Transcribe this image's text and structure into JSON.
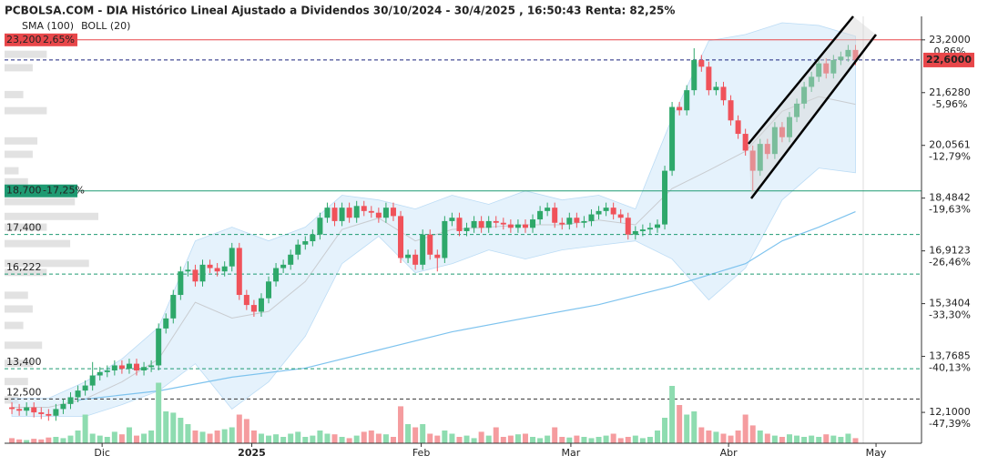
{
  "chart_data": {
    "type": "candlestick",
    "title": "PCBOLSA.COM - DIA Histórico Lineal Ajustado a Dividendos 30/10/2024 - 30/4/2025 , 16:50:43 Renta: 82,25%",
    "legend": [
      {
        "name": "SMA (100)",
        "color": "#7ec3ee"
      },
      {
        "name": "BOLL (20)",
        "color": "#b9c3cc"
      }
    ],
    "xlim": [
      -1,
      124
    ],
    "xticks": [
      {
        "value": 12.3,
        "label": "Dic"
      },
      {
        "value": 32.7,
        "label": "2025"
      },
      {
        "value": 55.8,
        "label": "Feb"
      },
      {
        "value": 76.2,
        "label": "Mar"
      },
      {
        "value": 97.7,
        "label": "Abr"
      },
      {
        "value": 117.8,
        "label": "May"
      }
    ],
    "ylim": [
      11.18,
      23.9
    ],
    "yticks": [
      {
        "value": 23.2,
        "label": "23,2000"
      },
      {
        "value": 21.628,
        "label": "21,6280"
      },
      {
        "value": 20.0561,
        "label": "20,0561"
      },
      {
        "value": 18.4842,
        "label": "18,4842"
      },
      {
        "value": 16.9123,
        "label": "16,9123"
      },
      {
        "value": 15.3404,
        "label": "15,3404"
      },
      {
        "value": 13.7685,
        "label": "13,7685"
      },
      {
        "value": 12.1,
        "label": "12,1000"
      }
    ],
    "ytick_changes": [
      "0,86%",
      "-5,96%",
      "-12,79%",
      "-19,63%",
      "-26,46%",
      "-33,30%",
      "-40,13%",
      "-47,39%"
    ],
    "up_color": "#2ea86a",
    "down_color": "#f0525a",
    "up_volume_color": "#8edcb0",
    "down_volume_color": "#f59c9f",
    "last": {
      "value": 22.6,
      "label": "22,6000",
      "color": "#e8474a"
    },
    "levels": [
      {
        "value": 23.2,
        "label": "23,200",
        "change": "2,65%",
        "color": "#e8474a",
        "style": "solid",
        "tag": true
      },
      {
        "value": 18.7,
        "label": "18,700",
        "change": "-17,25%",
        "color": "#1e9a72",
        "style": "solid",
        "tag": true
      },
      {
        "value": 17.4,
        "label": "17,400",
        "color": "#1e9a72",
        "style": "dashed",
        "tag": false
      },
      {
        "value": 16.222,
        "label": "16,222",
        "color": "#1e9a72",
        "style": "dashed",
        "tag": false
      },
      {
        "value": 13.4,
        "label": "13,400",
        "color": "#1e9a72",
        "style": "dashed",
        "tag": false
      },
      {
        "value": 12.5,
        "label": "12,500",
        "color": "#333333",
        "style": "dashed",
        "tag": false
      }
    ],
    "open": [
      12.25,
      12.2,
      12.15,
      12.25,
      12.1,
      12.05,
      12.0,
      12.2,
      12.35,
      12.55,
      12.75,
      12.9,
      13.2,
      13.3,
      13.35,
      13.5,
      13.4,
      13.55,
      13.35,
      13.45,
      13.5,
      14.6,
      14.9,
      15.6,
      16.3,
      16.35,
      16.0,
      16.5,
      16.4,
      16.3,
      16.45,
      17.0,
      15.6,
      15.3,
      15.1,
      15.5,
      16.0,
      16.4,
      16.5,
      16.8,
      17.1,
      17.2,
      17.4,
      17.9,
      18.2,
      17.8,
      18.2,
      17.9,
      18.25,
      18.1,
      18.05,
      17.9,
      18.2,
      17.95,
      16.7,
      16.8,
      16.5,
      17.4,
      16.8,
      16.7,
      17.8,
      17.9,
      17.5,
      17.6,
      17.8,
      17.6,
      17.8,
      17.75,
      17.7,
      17.6,
      17.7,
      17.6,
      17.85,
      18.1,
      18.2,
      17.75,
      17.7,
      17.9,
      17.75,
      17.8,
      18.0,
      18.1,
      18.2,
      18.0,
      17.9,
      17.4,
      17.5,
      17.55,
      17.6,
      17.7,
      19.3,
      21.2,
      21.1,
      21.7,
      22.6,
      22.4,
      21.7,
      21.8,
      21.4,
      20.8,
      20.4,
      19.9,
      19.3,
      20.1,
      19.8,
      20.6,
      20.3,
      20.9,
      21.3,
      21.8,
      22.1,
      22.5,
      22.2,
      22.6,
      22.7,
      22.9
    ],
    "high": [
      12.4,
      12.35,
      12.4,
      12.4,
      12.25,
      12.2,
      12.35,
      12.5,
      12.7,
      12.9,
      13.05,
      13.6,
      13.45,
      13.5,
      13.65,
      13.65,
      13.7,
      13.7,
      13.6,
      13.65,
      14.75,
      15.05,
      15.75,
      16.45,
      16.6,
      16.5,
      16.65,
      16.65,
      16.55,
      16.6,
      17.15,
      17.15,
      15.75,
      15.45,
      15.65,
      16.15,
      16.55,
      16.65,
      16.95,
      17.25,
      17.35,
      17.55,
      18.05,
      18.35,
      18.35,
      18.35,
      18.35,
      18.4,
      18.4,
      18.25,
      18.2,
      18.35,
      18.35,
      18.1,
      16.95,
      16.95,
      17.55,
      17.55,
      16.95,
      17.95,
      18.05,
      18.05,
      17.75,
      17.95,
      17.95,
      17.95,
      17.95,
      17.9,
      17.85,
      17.85,
      17.85,
      18.0,
      18.25,
      18.35,
      18.35,
      17.9,
      18.05,
      18.05,
      17.95,
      18.15,
      18.25,
      18.35,
      18.35,
      18.15,
      18.05,
      17.65,
      17.7,
      17.75,
      17.85,
      19.45,
      21.35,
      21.35,
      21.85,
      22.95,
      22.75,
      22.55,
      21.95,
      21.95,
      21.55,
      20.95,
      20.55,
      20.05,
      20.25,
      20.25,
      20.75,
      20.75,
      21.05,
      21.45,
      21.95,
      22.25,
      22.65,
      22.65,
      22.75,
      22.85,
      23.05,
      23.05
    ],
    "low": [
      12.05,
      12.0,
      12.0,
      11.95,
      11.9,
      11.85,
      11.85,
      12.05,
      12.2,
      12.4,
      12.6,
      12.75,
      13.05,
      13.15,
      13.2,
      13.25,
      13.25,
      13.2,
      13.2,
      13.3,
      13.35,
      14.45,
      14.75,
      15.45,
      16.15,
      15.85,
      15.85,
      16.25,
      16.15,
      16.15,
      16.3,
      15.45,
      15.15,
      14.95,
      14.95,
      15.35,
      15.85,
      16.25,
      16.35,
      16.65,
      16.95,
      17.05,
      17.25,
      17.75,
      17.65,
      17.65,
      17.75,
      17.75,
      17.95,
      17.9,
      17.75,
      17.75,
      17.8,
      16.55,
      16.55,
      16.35,
      16.35,
      16.65,
      16.3,
      16.55,
      17.65,
      17.35,
      17.35,
      17.45,
      17.45,
      17.45,
      17.6,
      17.55,
      17.45,
      17.45,
      17.45,
      17.45,
      17.7,
      17.95,
      17.6,
      17.55,
      17.55,
      17.6,
      17.6,
      17.65,
      17.85,
      17.95,
      17.85,
      17.75,
      17.25,
      17.25,
      17.35,
      17.4,
      17.45,
      17.55,
      19.15,
      20.95,
      20.95,
      21.55,
      22.25,
      21.55,
      21.55,
      21.25,
      20.65,
      20.25,
      19.75,
      18.7,
      19.15,
      19.65,
      19.65,
      20.15,
      20.15,
      20.75,
      21.15,
      21.65,
      21.95,
      22.05,
      22.05,
      22.45,
      22.55,
      22.45
    ],
    "close": [
      12.2,
      12.15,
      12.25,
      12.1,
      12.05,
      12.0,
      12.2,
      12.35,
      12.55,
      12.75,
      12.9,
      13.2,
      13.3,
      13.35,
      13.5,
      13.4,
      13.55,
      13.35,
      13.45,
      13.5,
      14.6,
      14.9,
      15.6,
      16.3,
      16.35,
      16.0,
      16.5,
      16.4,
      16.3,
      16.45,
      17.0,
      15.6,
      15.3,
      15.1,
      15.5,
      16.0,
      16.4,
      16.5,
      16.8,
      17.1,
      17.2,
      17.4,
      17.9,
      18.2,
      17.8,
      18.2,
      17.9,
      18.25,
      18.1,
      18.05,
      17.9,
      18.2,
      17.95,
      16.7,
      16.8,
      16.5,
      17.4,
      16.8,
      16.7,
      17.8,
      17.9,
      17.5,
      17.6,
      17.8,
      17.6,
      17.8,
      17.75,
      17.7,
      17.6,
      17.7,
      17.6,
      17.85,
      18.1,
      18.2,
      17.75,
      17.7,
      17.9,
      17.75,
      17.8,
      18.0,
      18.1,
      18.2,
      18.0,
      17.9,
      17.4,
      17.5,
      17.55,
      17.6,
      17.7,
      19.3,
      21.2,
      21.1,
      21.7,
      22.6,
      22.4,
      21.7,
      21.8,
      21.4,
      20.8,
      20.4,
      19.9,
      19.3,
      20.1,
      19.8,
      20.6,
      20.3,
      20.9,
      21.3,
      21.8,
      22.1,
      22.5,
      22.2,
      22.6,
      22.7,
      22.9,
      22.6
    ],
    "volume": [
      8,
      6,
      5,
      7,
      6,
      9,
      10,
      8,
      12,
      20,
      45,
      15,
      12,
      10,
      18,
      14,
      25,
      12,
      15,
      20,
      95,
      50,
      48,
      40,
      30,
      20,
      18,
      15,
      20,
      22,
      25,
      45,
      38,
      20,
      15,
      12,
      14,
      10,
      15,
      18,
      10,
      12,
      20,
      15,
      14,
      10,
      8,
      12,
      18,
      20,
      15,
      14,
      10,
      58,
      30,
      25,
      30,
      15,
      12,
      20,
      15,
      10,
      12,
      8,
      18,
      12,
      25,
      10,
      12,
      14,
      15,
      10,
      8,
      12,
      25,
      10,
      9,
      12,
      10,
      8,
      10,
      12,
      15,
      8,
      10,
      12,
      8,
      10,
      20,
      40,
      90,
      60,
      45,
      50,
      25,
      20,
      18,
      15,
      12,
      20,
      45,
      28,
      20,
      15,
      12,
      10,
      14,
      12,
      10,
      12,
      10,
      14,
      12,
      10,
      15,
      8
    ],
    "volume_lim": [
      0,
      150
    ],
    "bollinger": {
      "x": [
        0,
        5,
        10,
        15,
        20,
        25,
        30,
        35,
        40,
        45,
        50,
        55,
        60,
        65,
        70,
        75,
        80,
        85,
        90,
        95,
        100,
        105,
        110,
        115
      ],
      "upper": [
        12.52,
        12.52,
        13.01,
        13.69,
        14.64,
        17.21,
        17.62,
        17.21,
        17.62,
        18.57,
        18.43,
        18.16,
        18.57,
        18.3,
        18.7,
        18.43,
        18.57,
        18.16,
        20.87,
        23.17,
        23.36,
        23.71,
        23.63,
        23.31
      ],
      "middle": [
        12.25,
        12.25,
        12.5,
        13.01,
        13.69,
        15.38,
        14.91,
        15.11,
        16.0,
        17.55,
        17.89,
        17.21,
        17.55,
        17.62,
        17.69,
        17.69,
        17.83,
        17.69,
        18.77,
        19.31,
        19.88,
        21.07,
        21.51,
        21.28
      ],
      "lower": [
        11.98,
        11.98,
        11.98,
        12.33,
        12.74,
        13.55,
        12.2,
        13.01,
        14.37,
        16.53,
        17.35,
        16.26,
        16.53,
        16.94,
        16.67,
        16.94,
        17.08,
        17.21,
        16.67,
        15.45,
        16.4,
        18.43,
        19.38,
        19.24
      ]
    },
    "sma": {
      "x": [
        9,
        20,
        30,
        40,
        50,
        60,
        70,
        80,
        90,
        100,
        105,
        110,
        115
      ],
      "values": [
        12.47,
        12.74,
        13.15,
        13.42,
        13.96,
        14.5,
        14.91,
        15.31,
        15.86,
        16.53,
        17.21,
        17.62,
        18.08
      ]
    },
    "volume_profile": {
      "levels": [
        22.77,
        22.37,
        21.57,
        21.09,
        20.19,
        19.79,
        19.3,
        18.97,
        18.38,
        17.94,
        17.62,
        17.13,
        16.54,
        16.27,
        15.59,
        15.18,
        14.69,
        14.1,
        13.56,
        13.02,
        12.47
      ],
      "values": [
        45,
        30,
        20,
        45,
        35,
        30,
        15,
        25,
        75,
        100,
        45,
        70,
        90,
        45,
        25,
        30,
        20,
        40,
        30,
        25,
        15
      ]
    }
  }
}
